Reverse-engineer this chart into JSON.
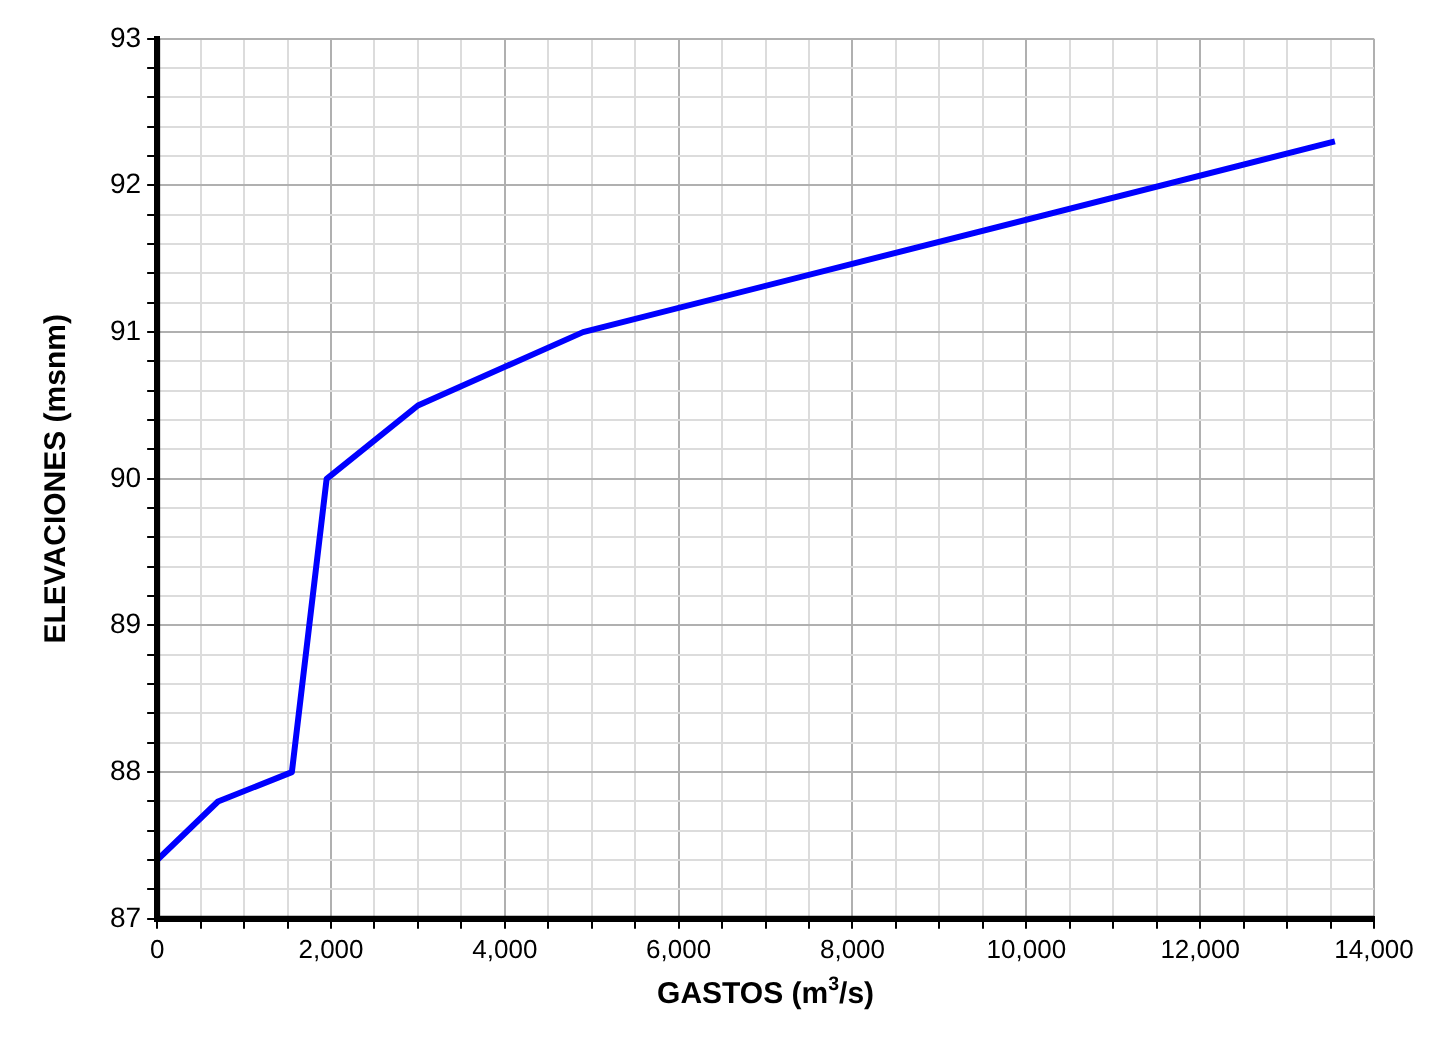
{
  "chart_data": {
    "type": "line",
    "xlabel": "GASTOS (m$^{3}$/s)",
    "ylabel": "ELEVACIONES (msnm)",
    "series": [
      {
        "color": "#0000ff",
        "x": [
          0,
          700,
          1550,
          1950,
          3000,
          4900,
          13550
        ],
        "values": [
          87.4,
          87.8,
          88.0,
          90.0,
          90.5,
          91.0,
          92.3
        ]
      }
    ],
    "xlim": [
      0,
      14000
    ],
    "xticks": [
      {
        "value": 0,
        "label": "0"
      },
      {
        "value": 500,
        "label": null
      },
      {
        "value": 1000,
        "label": null
      },
      {
        "value": 1500,
        "label": null
      },
      {
        "value": 2000,
        "label": "2,000"
      },
      {
        "value": 2500,
        "label": null
      },
      {
        "value": 3000,
        "label": null
      },
      {
        "value": 3500,
        "label": null
      },
      {
        "value": 4000,
        "label": "4,000"
      },
      {
        "value": 4500,
        "label": null
      },
      {
        "value": 5000,
        "label": null
      },
      {
        "value": 5500,
        "label": null
      },
      {
        "value": 6000,
        "label": "6,000"
      },
      {
        "value": 6500,
        "label": null
      },
      {
        "value": 7000,
        "label": null
      },
      {
        "value": 7500,
        "label": null
      },
      {
        "value": 8000,
        "label": "8,000"
      },
      {
        "value": 8500,
        "label": null
      },
      {
        "value": 9000,
        "label": null
      },
      {
        "value": 9500,
        "label": null
      },
      {
        "value": 10000,
        "label": "10,000"
      },
      {
        "value": 10500,
        "label": null
      },
      {
        "value": 11000,
        "label": null
      },
      {
        "value": 11500,
        "label": null
      },
      {
        "value": 12000,
        "label": "12,000"
      },
      {
        "value": 12500,
        "label": null
      },
      {
        "value": 13000,
        "label": null
      },
      {
        "value": 13500,
        "label": null
      },
      {
        "value": 14000,
        "label": "14,000"
      }
    ],
    "ylim": [
      87,
      93
    ],
    "yticks": [
      87,
      {
        "value": 87.2,
        "label": null
      },
      {
        "value": 87.4,
        "label": null
      },
      {
        "value": 87.6,
        "label": null
      },
      {
        "value": 87.8,
        "label": null
      },
      88,
      {
        "value": 88.2,
        "label": null
      },
      {
        "value": 88.4,
        "label": null
      },
      {
        "value": 88.6,
        "label": null
      },
      {
        "value": 88.8,
        "label": null
      },
      89,
      {
        "value": 89.2,
        "label": null
      },
      {
        "value": 89.4,
        "label": null
      },
      {
        "value": 89.6,
        "label": null
      },
      {
        "value": 89.8,
        "label": null
      },
      90,
      {
        "value": 90.2,
        "label": null
      },
      {
        "value": 90.4,
        "label": null
      },
      {
        "value": 90.6,
        "label": null
      },
      {
        "value": 90.8,
        "label": null
      },
      91,
      {
        "value": 91.2,
        "label": null
      },
      {
        "value": 91.4,
        "label": null
      },
      {
        "value": 91.6,
        "label": null
      },
      {
        "value": 91.8,
        "label": null
      },
      92,
      {
        "value": 92.2,
        "label": null
      },
      {
        "value": 92.4,
        "label": null
      },
      {
        "value": 92.6,
        "label": null
      },
      {
        "value": 92.8,
        "label": null
      },
      93
    ],
    "grid": true,
    "legend": false,
    "marker": "none",
    "line_style": "solid"
  }
}
